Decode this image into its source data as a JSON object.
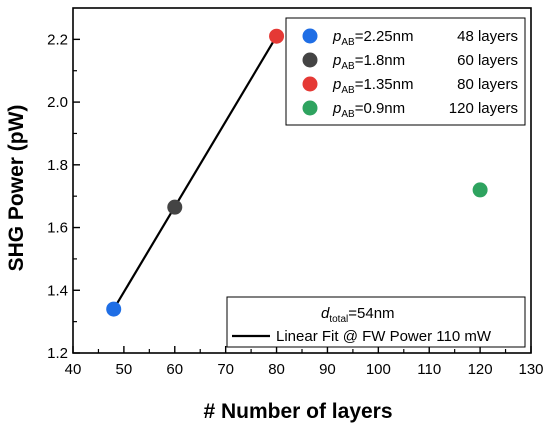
{
  "chart_data": {
    "type": "scatter",
    "xlabel": "# Number of layers",
    "ylabel": "SHG Power (pW)",
    "xlim": [
      40,
      130
    ],
    "ylim": [
      1.2,
      2.3
    ],
    "x_ticks": [
      "40",
      "50",
      "60",
      "70",
      "80",
      "90",
      "100",
      "110",
      "120",
      "130"
    ],
    "y_ticks": [
      "1.2",
      "1.4",
      "1.6",
      "1.8",
      "2.0",
      "2.2"
    ],
    "grid": false,
    "series": [
      {
        "name_italic": "p",
        "name_sub": "AB",
        "name_rest": "=2.25nm",
        "layers_label": "48 layers",
        "color": "#1f6ee5",
        "x": 48,
        "y": 1.34
      },
      {
        "name_italic": "p",
        "name_sub": "AB",
        "name_rest": "=1.8nm",
        "layers_label": "60 layers",
        "color": "#444444",
        "x": 60,
        "y": 1.665
      },
      {
        "name_italic": "p",
        "name_sub": "AB",
        "name_rest": "=1.35nm",
        "layers_label": "80 layers",
        "color": "#e53935",
        "x": 80,
        "y": 2.21
      },
      {
        "name_italic": "p",
        "name_sub": "AB",
        "name_rest": "=0.9nm",
        "layers_label": "120 layers",
        "color": "#2ea35f",
        "x": 120,
        "y": 1.72
      }
    ],
    "fit": {
      "type": "line",
      "color": "#000000",
      "x": [
        48,
        80
      ],
      "y": [
        1.34,
        2.21
      ],
      "label": "Linear Fit @ FW Power 110 mW"
    },
    "annotation": {
      "italic": "d",
      "sub": "total",
      "rest": "=54nm"
    },
    "legend_position": "top-right",
    "fit_legend_position": "bottom-right"
  }
}
